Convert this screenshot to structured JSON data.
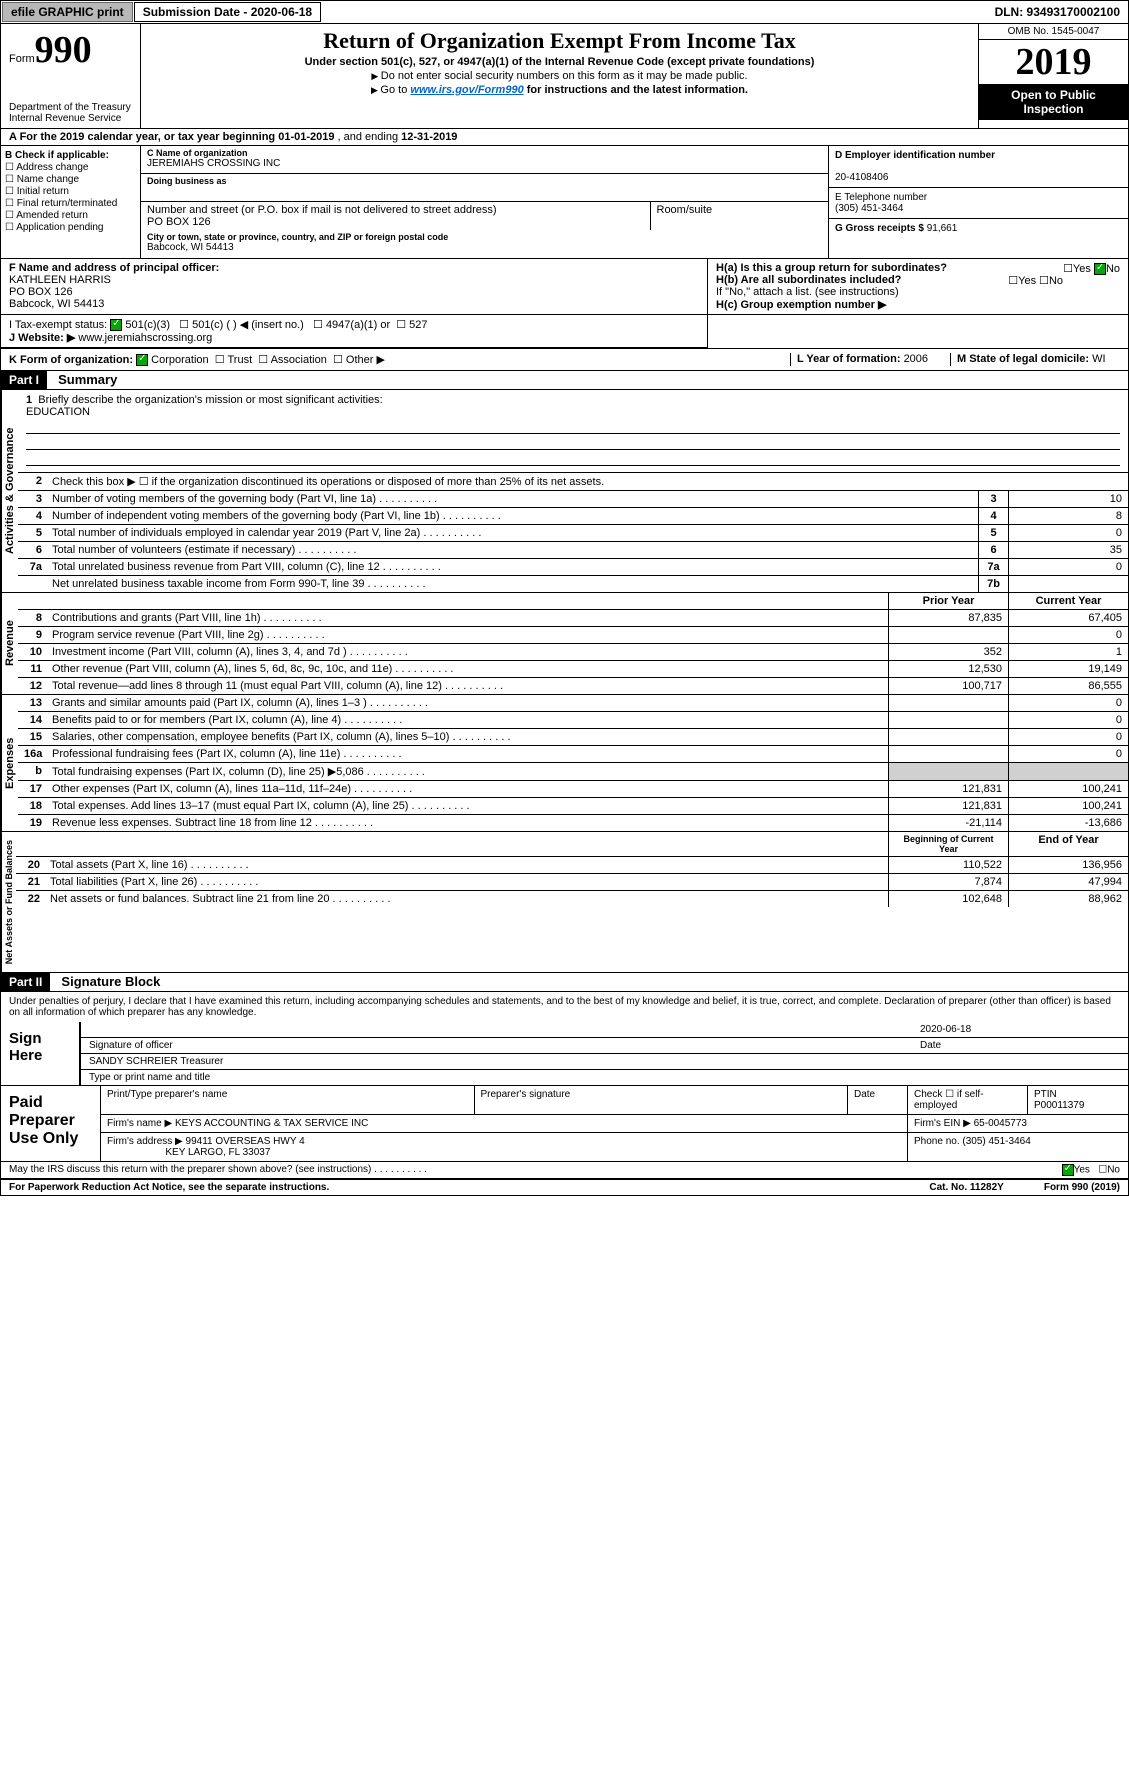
{
  "topbar": {
    "efile": "efile GRAPHIC print",
    "sub_label": "Submission Date - 2020-06-18",
    "dln": "DLN: 93493170002100"
  },
  "header": {
    "form_prefix": "Form",
    "form_num": "990",
    "title": "Return of Organization Exempt From Income Tax",
    "subtitle": "Under section 501(c), 527, or 4947(a)(1) of the Internal Revenue Code (except private foundations)",
    "note1": "Do not enter social security numbers on this form as it may be made public.",
    "note2_pre": "Go to ",
    "note2_link": "www.irs.gov/Form990",
    "note2_post": " for instructions and the latest information.",
    "omb": "OMB No. 1545-0047",
    "year": "2019",
    "open": "Open to Public Inspection",
    "dept1": "Department of the Treasury",
    "dept2": "Internal Revenue Service"
  },
  "line_a": {
    "prefix": "A For the 2019 calendar year, or tax year beginning ",
    "begin": "01-01-2019",
    "mid": " , and ending ",
    "end": "12-31-2019"
  },
  "box_b": {
    "title": "B Check if applicable:",
    "items": [
      "Address change",
      "Name change",
      "Initial return",
      "Final return/terminated",
      "Amended return",
      "Application pending"
    ]
  },
  "box_c": {
    "name_lbl": "C Name of organization",
    "name": "JEREMIAHS CROSSING INC",
    "dba_lbl": "Doing business as",
    "addr_lbl": "Number and street (or P.O. box if mail is not delivered to street address)",
    "room_lbl": "Room/suite",
    "addr": "PO BOX 126",
    "city_lbl": "City or town, state or province, country, and ZIP or foreign postal code",
    "city": "Babcock, WI  54413"
  },
  "box_d": {
    "lbl": "D Employer identification number",
    "val": "20-4108406"
  },
  "box_e": {
    "lbl": "E Telephone number",
    "val": "(305) 451-3464"
  },
  "box_g": {
    "lbl": "G Gross receipts $ ",
    "val": "91,661"
  },
  "box_f": {
    "lbl": "F  Name and address of principal officer:",
    "name": "KATHLEEN HARRIS",
    "addr1": "PO BOX 126",
    "addr2": "Babcock, WI  54413"
  },
  "box_h": {
    "ha": "H(a)  Is this a group return for subordinates?",
    "hb": "H(b)  Are all subordinates included?",
    "hb_note": "If \"No,\" attach a list. (see instructions)",
    "hc": "H(c)  Group exemption number ▶"
  },
  "row_i": {
    "lbl": "I     Tax-exempt status:",
    "opts": [
      "501(c)(3)",
      "501(c) (   ) ◀ (insert no.)",
      "4947(a)(1) or",
      "527"
    ]
  },
  "row_j": {
    "lbl": "J     Website: ▶",
    "val": "  www.jeremiahscrossing.org"
  },
  "row_k": {
    "lbl": "K Form of organization:",
    "opts": [
      "Corporation",
      "Trust",
      "Association",
      "Other ▶"
    ],
    "l_lbl": "L Year of formation: ",
    "l_val": "2006",
    "m_lbl": "M State of legal domicile: ",
    "m_val": "WI"
  },
  "part1": {
    "hdr": "Part I",
    "title": "Summary",
    "sections": {
      "gov": "Activities & Governance",
      "rev": "Revenue",
      "exp": "Expenses",
      "net": "Net Assets or Fund Balances"
    },
    "q1": "Briefly describe the organization's mission or most significant activities:",
    "q1_val": "EDUCATION",
    "q2": "Check this box ▶ ☐  if the organization discontinued its operations or disposed of more than 25% of its net assets.",
    "lines": [
      {
        "n": "3",
        "t": "Number of voting members of the governing body (Part VI, line 1a)",
        "r": "3",
        "v": "10"
      },
      {
        "n": "4",
        "t": "Number of independent voting members of the governing body (Part VI, line 1b)",
        "r": "4",
        "v": "8"
      },
      {
        "n": "5",
        "t": "Total number of individuals employed in calendar year 2019 (Part V, line 2a)",
        "r": "5",
        "v": "0"
      },
      {
        "n": "6",
        "t": "Total number of volunteers (estimate if necessary)",
        "r": "6",
        "v": "35"
      },
      {
        "n": "7a",
        "t": "Total unrelated business revenue from Part VIII, column (C), line 12",
        "r": "7a",
        "v": "0"
      },
      {
        "n": "",
        "t": "Net unrelated business taxable income from Form 990-T, line 39",
        "r": "7b",
        "v": ""
      }
    ],
    "col_hdrs": {
      "prior": "Prior Year",
      "current": "Current Year"
    },
    "rev_lines": [
      {
        "n": "8",
        "t": "Contributions and grants (Part VIII, line 1h)",
        "p": "87,835",
        "c": "67,405"
      },
      {
        "n": "9",
        "t": "Program service revenue (Part VIII, line 2g)",
        "p": "",
        "c": "0"
      },
      {
        "n": "10",
        "t": "Investment income (Part VIII, column (A), lines 3, 4, and 7d )",
        "p": "352",
        "c": "1"
      },
      {
        "n": "11",
        "t": "Other revenue (Part VIII, column (A), lines 5, 6d, 8c, 9c, 10c, and 11e)",
        "p": "12,530",
        "c": "19,149"
      },
      {
        "n": "12",
        "t": "Total revenue—add lines 8 through 11 (must equal Part VIII, column (A), line 12)",
        "p": "100,717",
        "c": "86,555"
      }
    ],
    "exp_lines": [
      {
        "n": "13",
        "t": "Grants and similar amounts paid (Part IX, column (A), lines 1–3 )",
        "p": "",
        "c": "0"
      },
      {
        "n": "14",
        "t": "Benefits paid to or for members (Part IX, column (A), line 4)",
        "p": "",
        "c": "0"
      },
      {
        "n": "15",
        "t": "Salaries, other compensation, employee benefits (Part IX, column (A), lines 5–10)",
        "p": "",
        "c": "0"
      },
      {
        "n": "16a",
        "t": "Professional fundraising fees (Part IX, column (A), line 11e)",
        "p": "",
        "c": "0"
      },
      {
        "n": "b",
        "t": "Total fundraising expenses (Part IX, column (D), line 25) ▶5,086",
        "p": "GRAY",
        "c": "GRAY"
      },
      {
        "n": "17",
        "t": "Other expenses (Part IX, column (A), lines 11a–11d, 11f–24e)",
        "p": "121,831",
        "c": "100,241"
      },
      {
        "n": "18",
        "t": "Total expenses. Add lines 13–17 (must equal Part IX, column (A), line 25)",
        "p": "121,831",
        "c": "100,241"
      },
      {
        "n": "19",
        "t": "Revenue less expenses. Subtract line 18 from line 12",
        "p": "-21,114",
        "c": "-13,686"
      }
    ],
    "net_hdrs": {
      "begin": "Beginning of Current Year",
      "end": "End of Year"
    },
    "net_lines": [
      {
        "n": "20",
        "t": "Total assets (Part X, line 16)",
        "p": "110,522",
        "c": "136,956"
      },
      {
        "n": "21",
        "t": "Total liabilities (Part X, line 26)",
        "p": "7,874",
        "c": "47,994"
      },
      {
        "n": "22",
        "t": "Net assets or fund balances. Subtract line 21 from line 20",
        "p": "102,648",
        "c": "88,962"
      }
    ]
  },
  "part2": {
    "hdr": "Part II",
    "title": "Signature Block",
    "perjury": "Under penalties of perjury, I declare that I have examined this return, including accompanying schedules and statements, and to the best of my knowledge and belief, it is true, correct, and complete. Declaration of preparer (other than officer) is based on all information of which preparer has any knowledge.",
    "sign_here": "Sign Here",
    "sig_officer": "Signature of officer",
    "date_lbl": "Date",
    "date": "2020-06-18",
    "officer_name": "SANDY SCHREIER  Treasurer",
    "type_name": "Type or print name and title",
    "paid": "Paid Preparer Use Only",
    "prep_name_lbl": "Print/Type preparer's name",
    "prep_sig_lbl": "Preparer's signature",
    "check_lbl": "Check ☐ if self-employed",
    "ptin_lbl": "PTIN",
    "ptin": "P00011379",
    "firm_name_lbl": "Firm's name   ▶ ",
    "firm_name": "KEYS ACCOUNTING & TAX SERVICE INC",
    "firm_ein_lbl": "Firm's EIN ▶ ",
    "firm_ein": "65-0045773",
    "firm_addr_lbl": "Firm's address ▶ ",
    "firm_addr1": "99411 OVERSEAS HWY 4",
    "firm_addr2": "KEY LARGO, FL  33037",
    "phone_lbl": "Phone no. ",
    "phone": "(305) 451-3464",
    "discuss": "May the IRS discuss this return with the preparer shown above? (see instructions)"
  },
  "footer": {
    "left": "For Paperwork Reduction Act Notice, see the separate instructions.",
    "mid": "Cat. No. 11282Y",
    "right": "Form 990 (2019)"
  }
}
